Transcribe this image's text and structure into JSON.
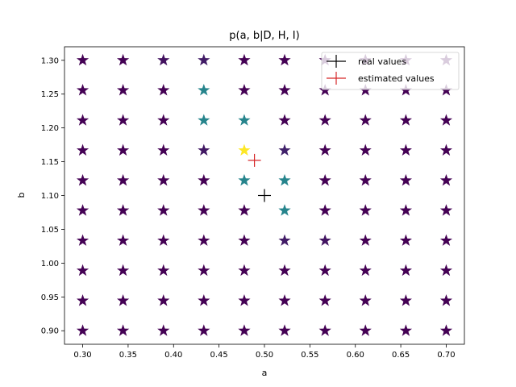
{
  "chart_data": {
    "type": "scatter",
    "title": "p(a, b|D, H, I)",
    "xlabel": "a",
    "ylabel": "b",
    "xlim": [
      0.28,
      0.72
    ],
    "ylim": [
      0.88,
      1.32
    ],
    "x_ticks": [
      "0.30",
      "0.35",
      "0.40",
      "0.45",
      "0.50",
      "0.55",
      "0.60",
      "0.65",
      "0.70"
    ],
    "y_ticks": [
      "0.90",
      "0.95",
      "1.00",
      "1.05",
      "1.10",
      "1.15",
      "1.20",
      "1.25",
      "1.30"
    ],
    "grid": false,
    "legend_position": "top-right",
    "colormap": "viridis",
    "grid_a": [
      0.3,
      0.3444,
      0.3889,
      0.4333,
      0.4778,
      0.5222,
      0.5667,
      0.6111,
      0.6556,
      0.7
    ],
    "grid_b": [
      0.9,
      0.9444,
      0.9889,
      1.0333,
      1.0778,
      1.1222,
      1.1667,
      1.2111,
      1.2556,
      1.3
    ],
    "probability_rows_low_to_high_b": [
      [
        0,
        0,
        0,
        0,
        0,
        0,
        0,
        0,
        0,
        0
      ],
      [
        0,
        0,
        0,
        0,
        0,
        0,
        0,
        0,
        0,
        0
      ],
      [
        0,
        0,
        0,
        0,
        0,
        0,
        0,
        0,
        0,
        0
      ],
      [
        0,
        0,
        0,
        0,
        0,
        0.08,
        0.06,
        0,
        0,
        0
      ],
      [
        0,
        0,
        0,
        0,
        0,
        0.45,
        0,
        0,
        0,
        0
      ],
      [
        0,
        0,
        0,
        0,
        0.45,
        0.45,
        0,
        0,
        0,
        0
      ],
      [
        0,
        0,
        0,
        0.07,
        1.0,
        0.1,
        0,
        0,
        0,
        0
      ],
      [
        0,
        0,
        0,
        0.45,
        0.45,
        0,
        0,
        0,
        0,
        0
      ],
      [
        0,
        0,
        0,
        0.45,
        0,
        0,
        0,
        0,
        0,
        0
      ],
      [
        0,
        0,
        0.05,
        0.08,
        0,
        0,
        0,
        0,
        0,
        0
      ]
    ],
    "series": [
      {
        "name": "real values",
        "color": "#000000",
        "points": [
          [
            0.5,
            1.1
          ]
        ]
      },
      {
        "name": "estimated values",
        "color": "#d62728",
        "points": [
          [
            0.489,
            1.152
          ]
        ]
      }
    ]
  }
}
